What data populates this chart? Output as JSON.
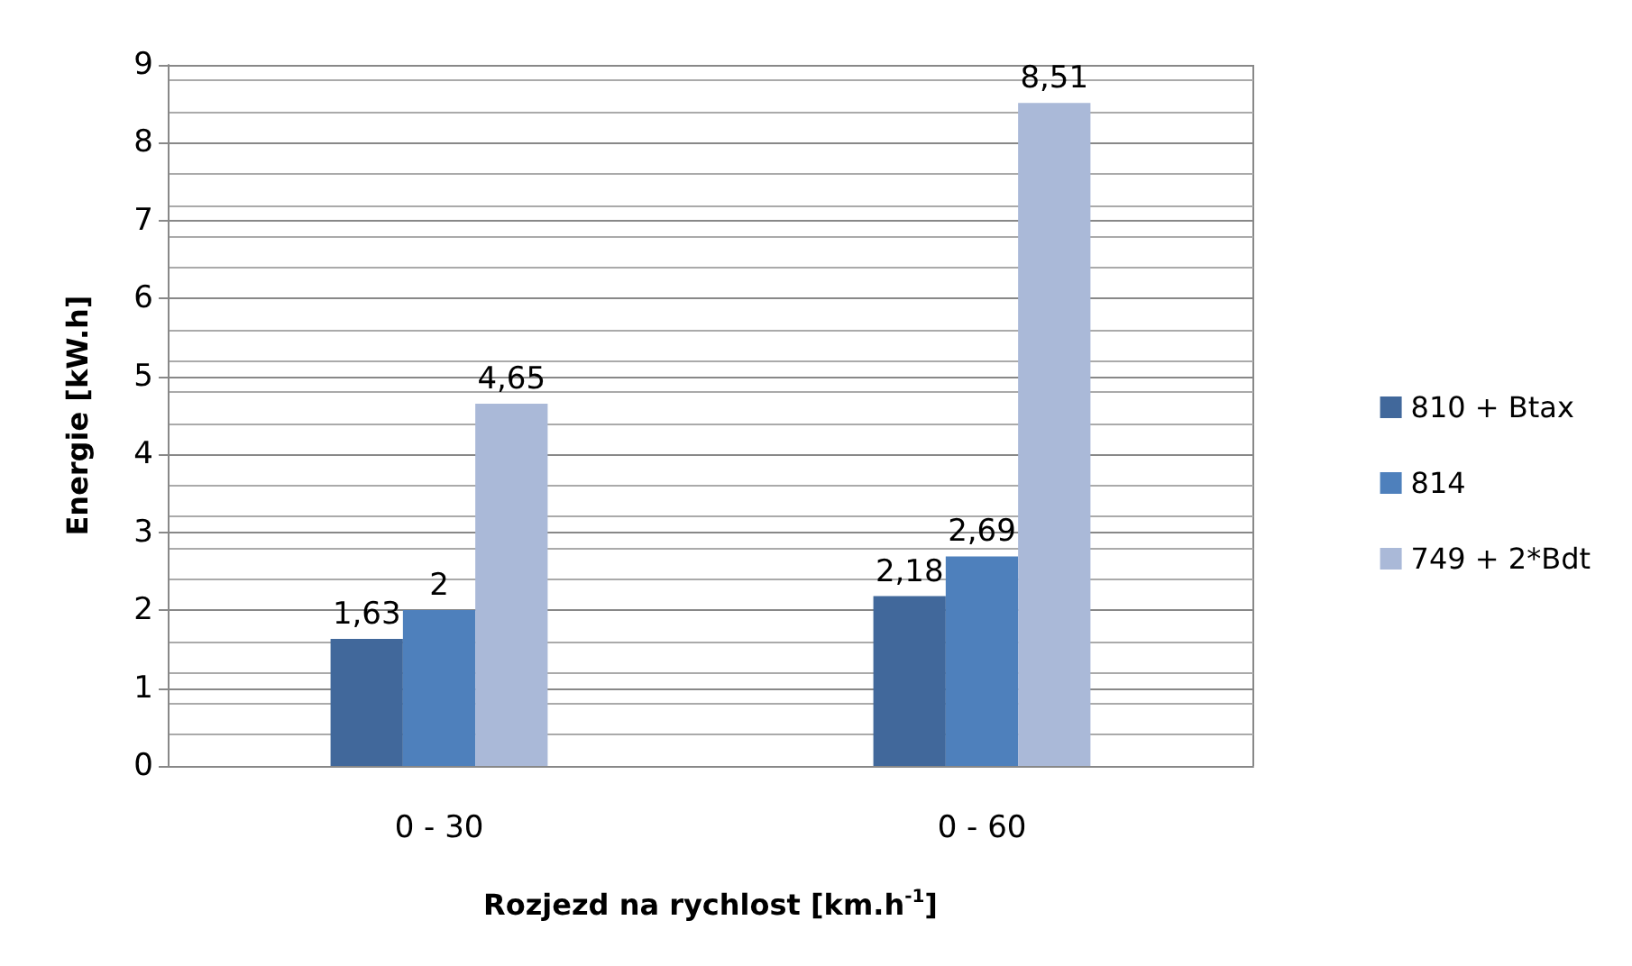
{
  "chart_data": {
    "type": "bar",
    "xlabel": "Rozjezd na rychlost [km.h$^{-1}$]",
    "ylabel": "Energie [kW.h]",
    "categories": [
      "0 - 30",
      "0 - 60"
    ],
    "series": [
      {
        "name": "810 + Btax",
        "color": "#41689b",
        "values": [
          1.63,
          2.18
        ],
        "value_labels": [
          "1,63",
          "2,18"
        ]
      },
      {
        "name": "814",
        "color": "#4e80bc",
        "values": [
          2,
          2.69
        ],
        "value_labels": [
          "2",
          "2,69"
        ]
      },
      {
        "name": "749 + 2*Bdt",
        "color": "#aab9d8",
        "values": [
          4.65,
          8.51
        ],
        "value_labels": [
          "4,65",
          "8,51"
        ]
      }
    ],
    "ylim": [
      0,
      9
    ],
    "yticks": [
      0,
      1,
      2,
      3,
      4,
      5,
      6,
      7,
      8,
      9
    ],
    "grid": true,
    "legend": "right"
  }
}
